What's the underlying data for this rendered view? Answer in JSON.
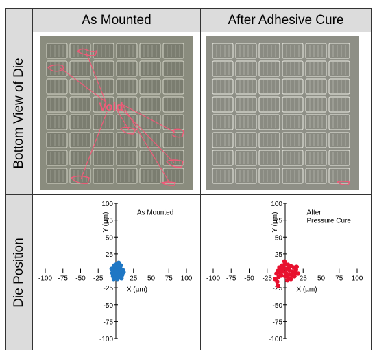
{
  "headers": {
    "col1": "As Mounted",
    "col2": "After Adhesive Cure",
    "row1": "Bottom View of Die",
    "row2": "Die Position"
  },
  "photo_labels": {
    "void": "Void"
  },
  "chart_data": [
    {
      "type": "scatter",
      "legend_text": "As Mounted",
      "xlabel": "X (µm)",
      "ylabel": "Y (µm)",
      "xlim": [
        -100,
        100
      ],
      "ylim": [
        -100,
        100
      ],
      "xticks": [
        -100,
        -75,
        -50,
        -25,
        25,
        50,
        75,
        100
      ],
      "yticks": [
        100,
        75,
        50,
        25,
        -25,
        -50,
        -75,
        -100
      ],
      "color": "#1f77c4",
      "points": [
        [
          -2,
          5
        ],
        [
          0,
          3
        ],
        [
          2,
          6
        ],
        [
          4,
          4
        ],
        [
          6,
          5
        ],
        [
          -3,
          0
        ],
        [
          0,
          0
        ],
        [
          3,
          1
        ],
        [
          5,
          -1
        ],
        [
          7,
          2
        ],
        [
          -5,
          -3
        ],
        [
          -1,
          -4
        ],
        [
          2,
          -2
        ],
        [
          5,
          -5
        ],
        [
          8,
          -3
        ],
        [
          -4,
          -8
        ],
        [
          0,
          -9
        ],
        [
          3,
          -7
        ],
        [
          6,
          -10
        ],
        [
          9,
          -6
        ],
        [
          1,
          10
        ],
        [
          4,
          12
        ],
        [
          -2,
          8
        ],
        [
          7,
          8
        ],
        [
          10,
          1
        ],
        [
          -6,
          3
        ],
        [
          11,
          -2
        ],
        [
          2,
          -12
        ],
        [
          -3,
          -12
        ],
        [
          8,
          -11
        ]
      ]
    },
    {
      "type": "scatter",
      "legend_text": "After Pressure Cure",
      "xlabel": "X (µm)",
      "ylabel": "Y (µm)",
      "xlim": [
        -100,
        100
      ],
      "ylim": [
        -100,
        100
      ],
      "xticks": [
        -100,
        -75,
        -50,
        -25,
        25,
        50,
        75,
        100
      ],
      "yticks": [
        100,
        75,
        50,
        25,
        -25,
        -50,
        -75,
        -100
      ],
      "color": "#e8102e",
      "points": [
        [
          -8,
          5
        ],
        [
          -4,
          8
        ],
        [
          0,
          10
        ],
        [
          4,
          9
        ],
        [
          8,
          7
        ],
        [
          12,
          5
        ],
        [
          15,
          2
        ],
        [
          -10,
          0
        ],
        [
          -6,
          2
        ],
        [
          -2,
          4
        ],
        [
          2,
          3
        ],
        [
          6,
          1
        ],
        [
          10,
          -1
        ],
        [
          14,
          -3
        ],
        [
          -12,
          -4
        ],
        [
          -7,
          -3
        ],
        [
          -3,
          -1
        ],
        [
          1,
          -3
        ],
        [
          5,
          -5
        ],
        [
          9,
          -6
        ],
        [
          13,
          -8
        ],
        [
          -9,
          -9
        ],
        [
          -5,
          -7
        ],
        [
          0,
          -8
        ],
        [
          4,
          -10
        ],
        [
          8,
          -12
        ],
        [
          -14,
          -12
        ],
        [
          -11,
          -16
        ],
        [
          -10,
          -22
        ],
        [
          6,
          6
        ],
        [
          16,
          6
        ],
        [
          -1,
          14
        ],
        [
          3,
          -14
        ],
        [
          18,
          -4
        ]
      ]
    }
  ]
}
